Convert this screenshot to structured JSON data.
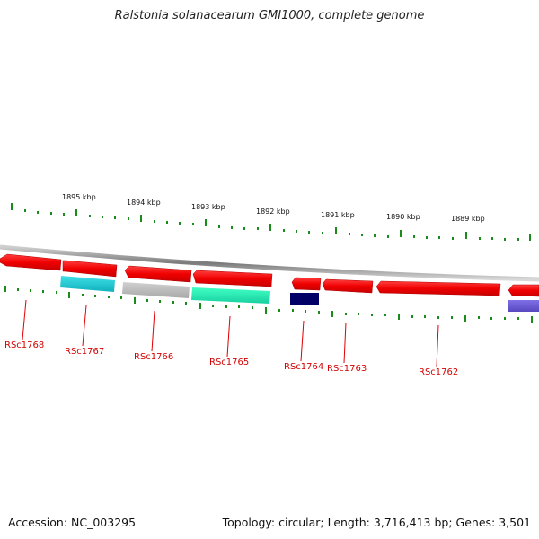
{
  "title": "Ralstonia solanacearum GMI1000, complete genome",
  "footer": {
    "accession": "Accession: NC_003295",
    "summary": "Topology: circular; Length: 3,716,413 bp; Genes: 3,501"
  },
  "colors": {
    "forward_strand": "#ff0000",
    "backbone": "#888888",
    "scale_ticks": "#1a8a1a",
    "label": "#d40000",
    "cyan": "#1fc8d0",
    "gray": "#bdbdbd",
    "aquamarine": "#28f0b4",
    "navy": "#000066",
    "slateblue": "#7060d8"
  },
  "scale_labels": [
    "1895 kbp",
    "1894 kbp",
    "1893 kbp",
    "1892 kbp",
    "1891 kbp",
    "1890 kbp",
    "1889 kbp"
  ],
  "genes": [
    {
      "id": "RSc1768",
      "label": "RSc1768"
    },
    {
      "id": "RSc1767",
      "label": "RSc1767"
    },
    {
      "id": "RSc1766",
      "label": "RSc1766"
    },
    {
      "id": "RSc1765",
      "label": "RSc1765"
    },
    {
      "id": "RSc1764",
      "label": "RSc1764"
    },
    {
      "id": "RSc1763",
      "label": "RSc1763"
    },
    {
      "id": "RSc1762",
      "label": "RSc1762"
    }
  ]
}
